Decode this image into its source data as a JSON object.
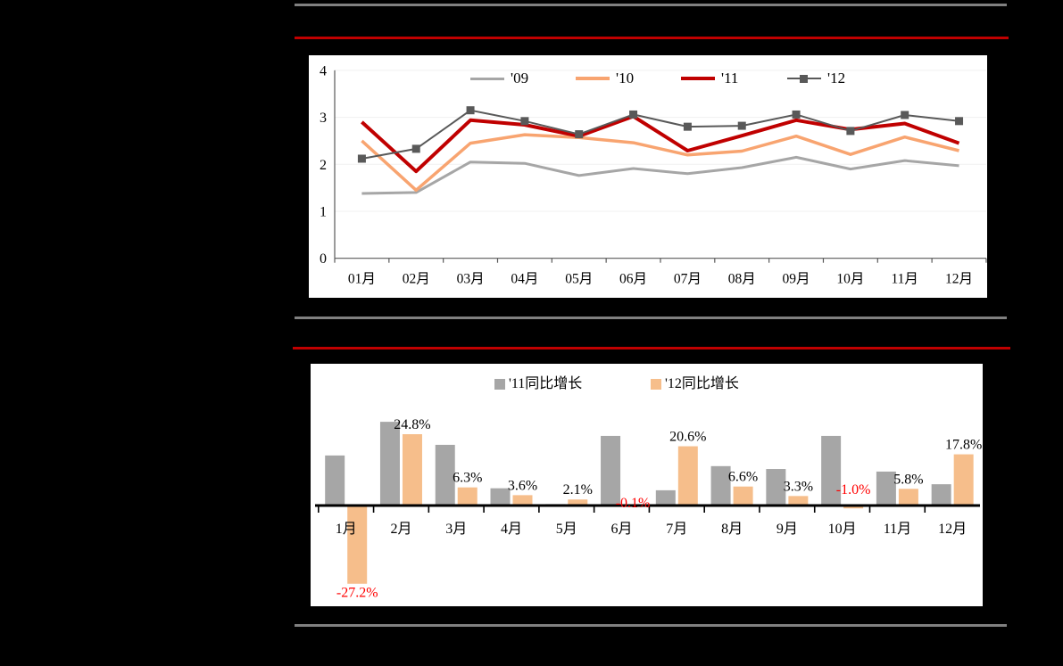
{
  "page": {
    "background": "#000000"
  },
  "rules": {
    "gray_color": "#808080",
    "red_color": "#C00000"
  },
  "chart_data": [
    {
      "type": "line",
      "title": "",
      "categories": [
        "01月",
        "02月",
        "03月",
        "04月",
        "05月",
        "06月",
        "07月",
        "08月",
        "09月",
        "10月",
        "11月",
        "12月"
      ],
      "yticks": [
        0,
        1,
        2,
        3,
        4
      ],
      "ylim": [
        0,
        4
      ],
      "grid": true,
      "legend_position": "top",
      "series": [
        {
          "name": "'09",
          "color": "#A6A6A6",
          "values": [
            1.38,
            1.4,
            2.05,
            2.02,
            1.76,
            1.91,
            1.8,
            1.93,
            2.15,
            1.9,
            2.08,
            1.97
          ]
        },
        {
          "name": "'10",
          "color": "#F8A470",
          "values": [
            2.5,
            1.45,
            2.45,
            2.63,
            2.57,
            2.46,
            2.2,
            2.28,
            2.6,
            2.21,
            2.58,
            2.29
          ]
        },
        {
          "name": "'11",
          "color": "#C00000",
          "values": [
            2.9,
            1.85,
            2.94,
            2.84,
            2.6,
            3.02,
            2.29,
            2.61,
            2.94,
            2.74,
            2.87,
            2.45
          ]
        },
        {
          "name": "'12",
          "color": "#595959",
          "marker": "square",
          "values": [
            2.12,
            2.33,
            3.15,
            2.92,
            2.64,
            3.06,
            2.8,
            2.82,
            3.06,
            2.71,
            3.05,
            2.92
          ]
        }
      ]
    },
    {
      "type": "bar",
      "title": "",
      "categories": [
        "1月",
        "2月",
        "3月",
        "4月",
        "5月",
        "6月",
        "7月",
        "8月",
        "9月",
        "10月",
        "11月",
        "12月"
      ],
      "legend_position": "top",
      "baseline": 0,
      "series": [
        {
          "name": "'11同比增长",
          "color": "#A6A6A6",
          "values": [
            17.4,
            29.1,
            21.1,
            6.0,
            0.5,
            24.2,
            5.3,
            13.7,
            12.7,
            24.2,
            11.8,
            7.4
          ]
        },
        {
          "name": "'12同比增长",
          "color": "#F6BE8B",
          "values": [
            -27.2,
            24.8,
            6.3,
            3.6,
            2.1,
            -0.1,
            20.6,
            6.6,
            3.3,
            -1.0,
            5.8,
            17.8
          ],
          "labels": [
            "-27.2%",
            "24.8%",
            "6.3%",
            "3.6%",
            "2.1%",
            "-0.1%",
            "20.6%",
            "6.6%",
            "3.3%",
            "-1.0%",
            "5.8%",
            "17.8%"
          ],
          "label_color_positive": "#000000",
          "label_color_negative": "#FF0000"
        }
      ]
    }
  ]
}
